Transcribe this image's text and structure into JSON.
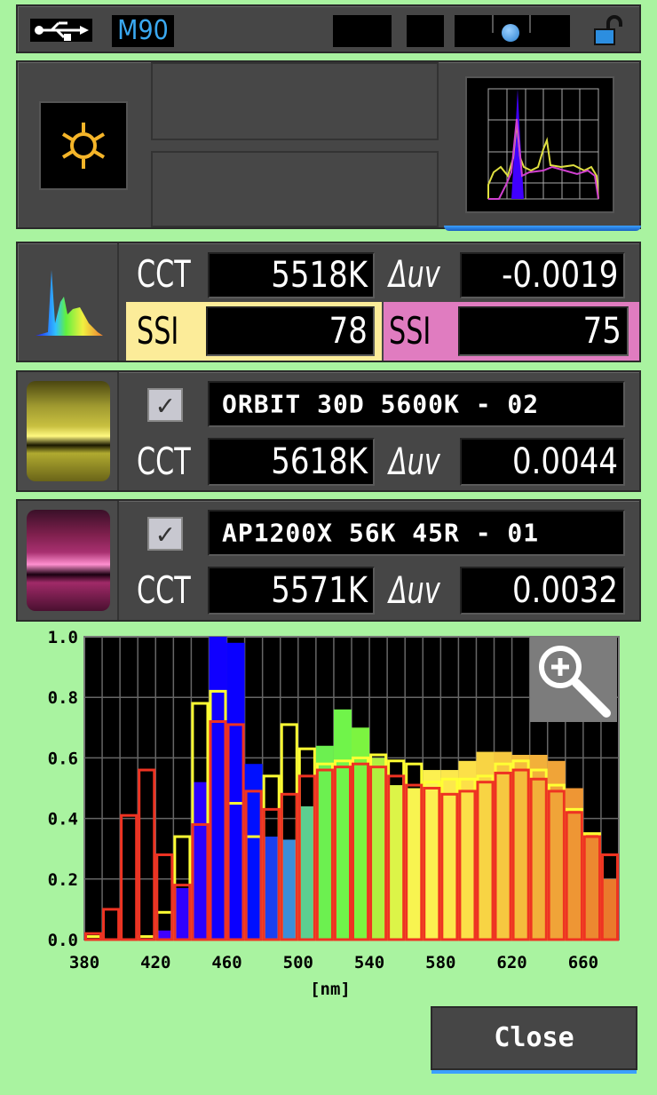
{
  "status_bar": {
    "memory_label": "M90",
    "icons": [
      "usb-icon",
      "record-indicator-icon",
      "lock-open-icon"
    ]
  },
  "mode": {
    "icon": "ambient-light-sun-icon",
    "accent": "#f5b529"
  },
  "measured": {
    "cct_label": "CCT",
    "cct": "5518K",
    "duv_label": "Δuv",
    "duv": "-0.0019",
    "ssi_a_label": "SSI",
    "ssi_a": "78",
    "ssi_a_color": "#fcec99",
    "ssi_b_label": "SSI",
    "ssi_b": "75",
    "ssi_b_color": "#e07cc0"
  },
  "references": [
    {
      "name": "ORBIT 30D 5600K - 02",
      "checked": true,
      "cct_label": "CCT",
      "cct": "5618K",
      "duv_label": "Δuv",
      "duv": "0.0044",
      "swatch": "#e8e060"
    },
    {
      "name": "AP1200X 56K 45R - 01",
      "checked": true,
      "cct_label": "CCT",
      "cct": "5571K",
      "duv_label": "Δuv",
      "duv": "0.0032",
      "swatch": "#e060b0"
    }
  ],
  "close_label": "Close",
  "chart_data": {
    "type": "bar",
    "xlabel": "[nm]",
    "xlim": [
      380,
      680
    ],
    "ylim": [
      0,
      1.0
    ],
    "x_ticks": [
      "380",
      "420",
      "460",
      "500",
      "540",
      "580",
      "620",
      "660"
    ],
    "y_ticks": [
      "0.0",
      "0.2",
      "0.4",
      "0.6",
      "0.8",
      "1.0"
    ],
    "grid": true,
    "bin_width_nm": 10,
    "x": [
      380,
      390,
      400,
      410,
      420,
      430,
      440,
      450,
      460,
      470,
      480,
      490,
      500,
      510,
      520,
      530,
      540,
      550,
      560,
      570,
      580,
      590,
      600,
      610,
      620,
      630,
      640,
      650,
      660,
      670
    ],
    "series": [
      {
        "style": "filled-spectrum",
        "values": [
          0,
          0,
          0,
          0,
          0.03,
          0.17,
          0.52,
          1.0,
          0.98,
          0.58,
          0.34,
          0.33,
          0.44,
          0.64,
          0.76,
          0.7,
          0.6,
          0.51,
          0.5,
          0.56,
          0.56,
          0.59,
          0.62,
          0.62,
          0.61,
          0.61,
          0.59,
          0.5,
          0.35,
          0.2
        ]
      },
      {
        "style": "outline",
        "color": "#ffff33",
        "values": [
          0.01,
          0,
          0,
          0.01,
          0.09,
          0.34,
          0.78,
          0.82,
          0.45,
          0.34,
          0.54,
          0.71,
          0.63,
          0.58,
          0.59,
          0.6,
          0.61,
          0.59,
          0.58,
          0.52,
          0.53,
          0.53,
          0.54,
          0.58,
          0.59,
          0.56,
          0.51,
          0.43,
          0.35,
          0.28
        ]
      },
      {
        "style": "outline",
        "color": "#ee3322",
        "values": [
          0.02,
          0.1,
          0.41,
          0.56,
          0.28,
          0.18,
          0.38,
          0.72,
          0.71,
          0.49,
          0.43,
          0.48,
          0.54,
          0.56,
          0.57,
          0.58,
          0.57,
          0.54,
          0.51,
          0.5,
          0.48,
          0.49,
          0.52,
          0.55,
          0.56,
          0.53,
          0.49,
          0.42,
          0.34,
          0.28
        ]
      }
    ],
    "fill_colors": [
      "#3a00ff",
      "#3a00ff",
      "#3a00ff",
      "#3a00ff",
      "#4000ff",
      "#3000ff",
      "#2a00ff",
      "#1000ff",
      "#0a00ff",
      "#0010ff",
      "#1a40f0",
      "#3c8ed8",
      "#5ccf90",
      "#6cf050",
      "#70f44a",
      "#7cf440",
      "#b0f040",
      "#dcf448",
      "#f8f450",
      "#fcf050",
      "#fce84c",
      "#fce048",
      "#f8d444",
      "#f6c840",
      "#f4bc3c",
      "#f2b03a",
      "#f0a438",
      "#ee9634",
      "#ec8830",
      "#ea7a2c"
    ]
  }
}
